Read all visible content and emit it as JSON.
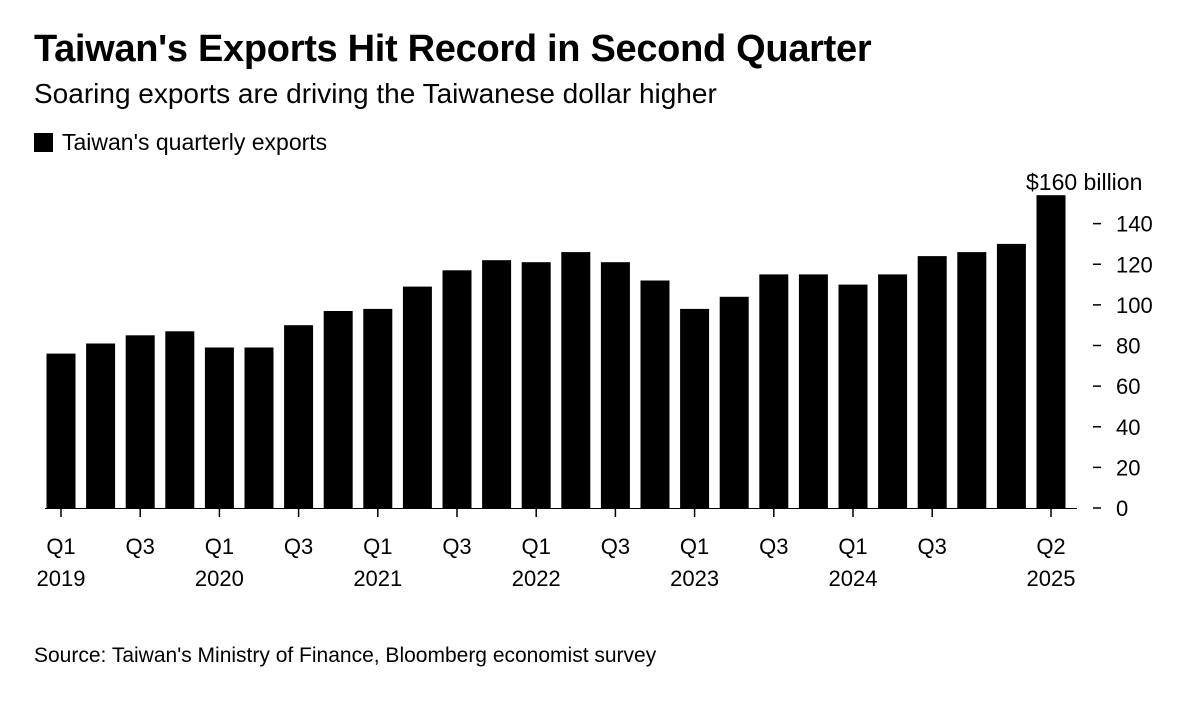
{
  "title": "Taiwan's Exports Hit Record in Second Quarter",
  "subtitle": "Soaring exports are driving the Taiwanese dollar higher",
  "legend": {
    "label": "Taiwan's quarterly exports",
    "color": "#000000"
  },
  "unit_label": "$160 billion",
  "source": "Source: Taiwan's Ministry of Finance, Bloomberg economist survey",
  "chart_data": {
    "type": "bar",
    "categories": [
      "Q1 2019",
      "Q2 2019",
      "Q3 2019",
      "Q4 2019",
      "Q1 2020",
      "Q2 2020",
      "Q3 2020",
      "Q4 2020",
      "Q1 2021",
      "Q2 2021",
      "Q3 2021",
      "Q4 2021",
      "Q1 2022",
      "Q2 2022",
      "Q3 2022",
      "Q4 2022",
      "Q1 2023",
      "Q2 2023",
      "Q3 2023",
      "Q4 2023",
      "Q1 2024",
      "Q2 2024",
      "Q3 2024",
      "Q4 2024",
      "Q1 2025",
      "Q2 2025"
    ],
    "series": [
      {
        "name": "Taiwan's quarterly exports",
        "values": [
          76,
          81,
          85,
          87,
          79,
          79,
          90,
          97,
          98,
          109,
          117,
          122,
          121,
          126,
          121,
          112,
          98,
          104,
          115,
          115,
          110,
          115,
          124,
          126,
          130,
          154
        ]
      }
    ],
    "ylim": [
      0,
      160
    ],
    "yticks": [
      "0",
      "20",
      "40",
      "60",
      "80",
      "100",
      "120",
      "140"
    ],
    "xtick_labels": [
      {
        "index": 0,
        "line1": "Q1",
        "line2": "2019"
      },
      {
        "index": 2,
        "line1": "Q3",
        "line2": ""
      },
      {
        "index": 4,
        "line1": "Q1",
        "line2": "2020"
      },
      {
        "index": 6,
        "line1": "Q3",
        "line2": ""
      },
      {
        "index": 8,
        "line1": "Q1",
        "line2": "2021"
      },
      {
        "index": 10,
        "line1": "Q3",
        "line2": ""
      },
      {
        "index": 12,
        "line1": "Q1",
        "line2": "2022"
      },
      {
        "index": 14,
        "line1": "Q3",
        "line2": ""
      },
      {
        "index": 16,
        "line1": "Q1",
        "line2": "2023"
      },
      {
        "index": 18,
        "line1": "Q3",
        "line2": ""
      },
      {
        "index": 20,
        "line1": "Q1",
        "line2": "2024"
      },
      {
        "index": 22,
        "line1": "Q3",
        "line2": ""
      },
      {
        "index": 25,
        "line1": "Q2",
        "line2": "2025"
      }
    ],
    "bar_color": "#000000",
    "axis_position": "right",
    "grid": false,
    "legend_position": "top-left"
  }
}
